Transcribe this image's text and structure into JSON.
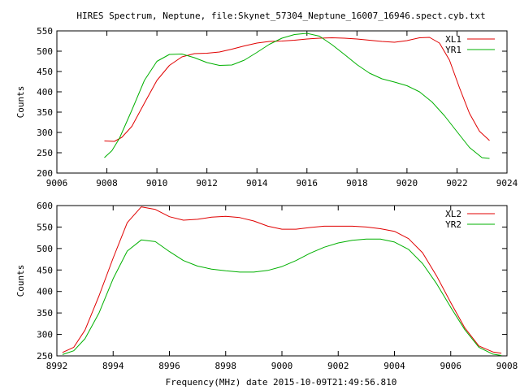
{
  "page": {
    "title": "HIRES Spectrum, Neptune, file:Skynet_57304_Neptune_16007_16946.spect.cyb.txt",
    "xlabel": "Frequency(MHz) date 2015-10-09T21:49:56.810"
  },
  "chart_data": [
    {
      "type": "line",
      "title": "HIRES Spectrum, Neptune, file:Skynet_57304_Neptune_16007_16946.spect.cyb.txt",
      "xlabel": "",
      "ylabel": "Counts",
      "xlim": [
        9006,
        9024
      ],
      "ylim": [
        200,
        550
      ],
      "xticks": [
        9006,
        9008,
        9010,
        9012,
        9014,
        9016,
        9018,
        9020,
        9022,
        9024
      ],
      "yticks": [
        200,
        250,
        300,
        350,
        400,
        450,
        500,
        550
      ],
      "grid": false,
      "legend": "top-right",
      "series": [
        {
          "name": "XL1",
          "color": "#e00000",
          "x": [
            9007.9,
            9008.3,
            9008.6,
            9009.0,
            9009.5,
            9010.0,
            9010.5,
            9011.0,
            9011.5,
            9012.0,
            9012.5,
            9013.0,
            9013.5,
            9014.0,
            9014.5,
            9015.0,
            9015.5,
            9016.0,
            9016.5,
            9017.0,
            9017.5,
            9018.0,
            9018.5,
            9019.0,
            9019.5,
            9020.0,
            9020.5,
            9020.9,
            9021.3,
            9021.7,
            9022.1,
            9022.5,
            9022.9,
            9023.3
          ],
          "y": [
            279,
            278,
            288,
            315,
            372,
            428,
            465,
            486,
            494,
            495,
            498,
            505,
            513,
            520,
            524,
            525,
            527,
            530,
            532,
            533,
            532,
            530,
            527,
            524,
            522,
            526,
            533,
            534,
            520,
            478,
            410,
            347,
            303,
            280
          ]
        },
        {
          "name": "YR1",
          "color": "#00b000",
          "x": [
            9007.9,
            9008.2,
            9008.5,
            9009.0,
            9009.5,
            9010.0,
            9010.5,
            9011.0,
            9011.5,
            9012.0,
            9012.5,
            9013.0,
            9013.5,
            9014.0,
            9014.5,
            9015.0,
            9015.5,
            9016.0,
            9016.5,
            9017.0,
            9017.5,
            9018.0,
            9018.5,
            9019.0,
            9019.5,
            9020.0,
            9020.5,
            9021.0,
            9021.5,
            9022.0,
            9022.5,
            9023.0,
            9023.3
          ],
          "y": [
            238,
            255,
            285,
            355,
            428,
            475,
            492,
            493,
            484,
            472,
            465,
            466,
            478,
            497,
            517,
            532,
            541,
            544,
            537,
            516,
            492,
            467,
            446,
            432,
            424,
            415,
            400,
            375,
            341,
            302,
            263,
            238,
            236
          ]
        }
      ]
    },
    {
      "type": "line",
      "title": "",
      "xlabel": "Frequency(MHz) date 2015-10-09T21:49:56.810",
      "ylabel": "Counts",
      "xlim": [
        8992,
        9008
      ],
      "ylim": [
        250,
        600
      ],
      "xticks": [
        8992,
        8994,
        8996,
        8998,
        9000,
        9002,
        9004,
        9006,
        9008
      ],
      "yticks": [
        250,
        300,
        350,
        400,
        450,
        500,
        550,
        600
      ],
      "grid": false,
      "legend": "top-right",
      "series": [
        {
          "name": "XL2",
          "color": "#e00000",
          "x": [
            8992.2,
            8992.6,
            8993.0,
            8993.5,
            8994.0,
            8994.5,
            8995.0,
            8995.5,
            8996.0,
            8996.5,
            8997.0,
            8997.5,
            8998.0,
            8998.5,
            8999.0,
            8999.5,
            9000.0,
            9000.5,
            9001.0,
            9001.5,
            9002.0,
            9002.5,
            9003.0,
            9003.5,
            9004.0,
            9004.5,
            9005.0,
            9005.5,
            9006.0,
            9006.5,
            9007.0,
            9007.5,
            9007.8
          ],
          "y": [
            258,
            270,
            310,
            390,
            478,
            560,
            597,
            591,
            574,
            566,
            568,
            573,
            575,
            572,
            564,
            552,
            545,
            545,
            549,
            552,
            552,
            552,
            550,
            546,
            540,
            523,
            490,
            436,
            374,
            315,
            273,
            259,
            256
          ]
        },
        {
          "name": "YR2",
          "color": "#00b000",
          "x": [
            8992.2,
            8992.6,
            8993.0,
            8993.5,
            8994.0,
            8994.5,
            8995.0,
            8995.5,
            8996.0,
            8996.5,
            8997.0,
            8997.5,
            8998.0,
            8998.5,
            8999.0,
            8999.5,
            9000.0,
            9000.5,
            9001.0,
            9001.5,
            9002.0,
            9002.5,
            9003.0,
            9003.5,
            9004.0,
            9004.5,
            9005.0,
            9005.5,
            9006.0,
            9006.5,
            9007.0,
            9007.5,
            9007.8
          ],
          "y": [
            253,
            262,
            290,
            350,
            430,
            494,
            520,
            516,
            493,
            472,
            459,
            452,
            448,
            445,
            445,
            449,
            458,
            472,
            489,
            503,
            513,
            519,
            522,
            522,
            515,
            498,
            465,
            418,
            363,
            311,
            270,
            254,
            251
          ]
        }
      ]
    }
  ]
}
